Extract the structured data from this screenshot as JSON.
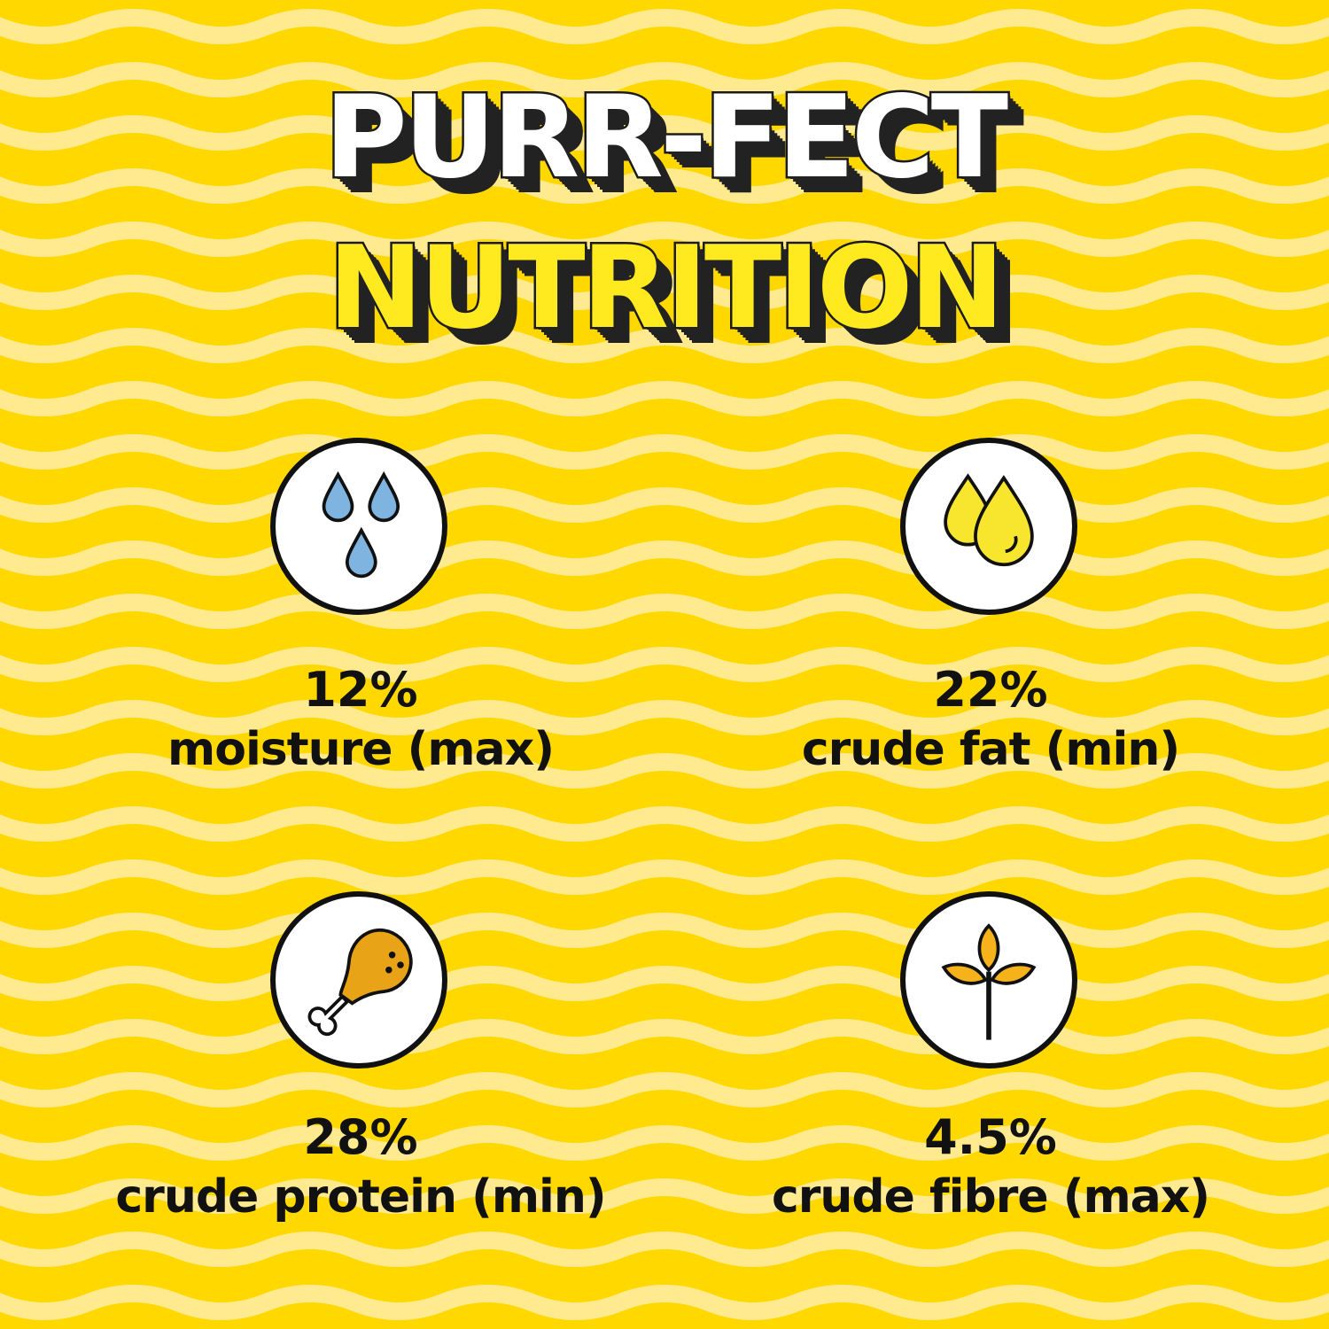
{
  "title": {
    "line1": "PURR-FECT",
    "line2": "NUTRITION"
  },
  "colors": {
    "background": "#FFD800",
    "stripe": "#FFEA90",
    "title_white": "#FFFFFF",
    "title_yellow": "#FFEA1F",
    "water": "#7FB3E0",
    "oil": "#F7E52E",
    "chicken": "#E8A317",
    "grain": "#F5B21A"
  },
  "items": [
    {
      "icon": "water-drops-icon",
      "value": "12%",
      "label": "moisture (max)"
    },
    {
      "icon": "oil-drops-icon",
      "value": "22%",
      "label": "crude fat (min)"
    },
    {
      "icon": "chicken-leg-icon",
      "value": "28%",
      "label": "crude protein (min)"
    },
    {
      "icon": "wheat-sprout-icon",
      "value": "4.5%",
      "label": "crude fibre (max)"
    }
  ]
}
